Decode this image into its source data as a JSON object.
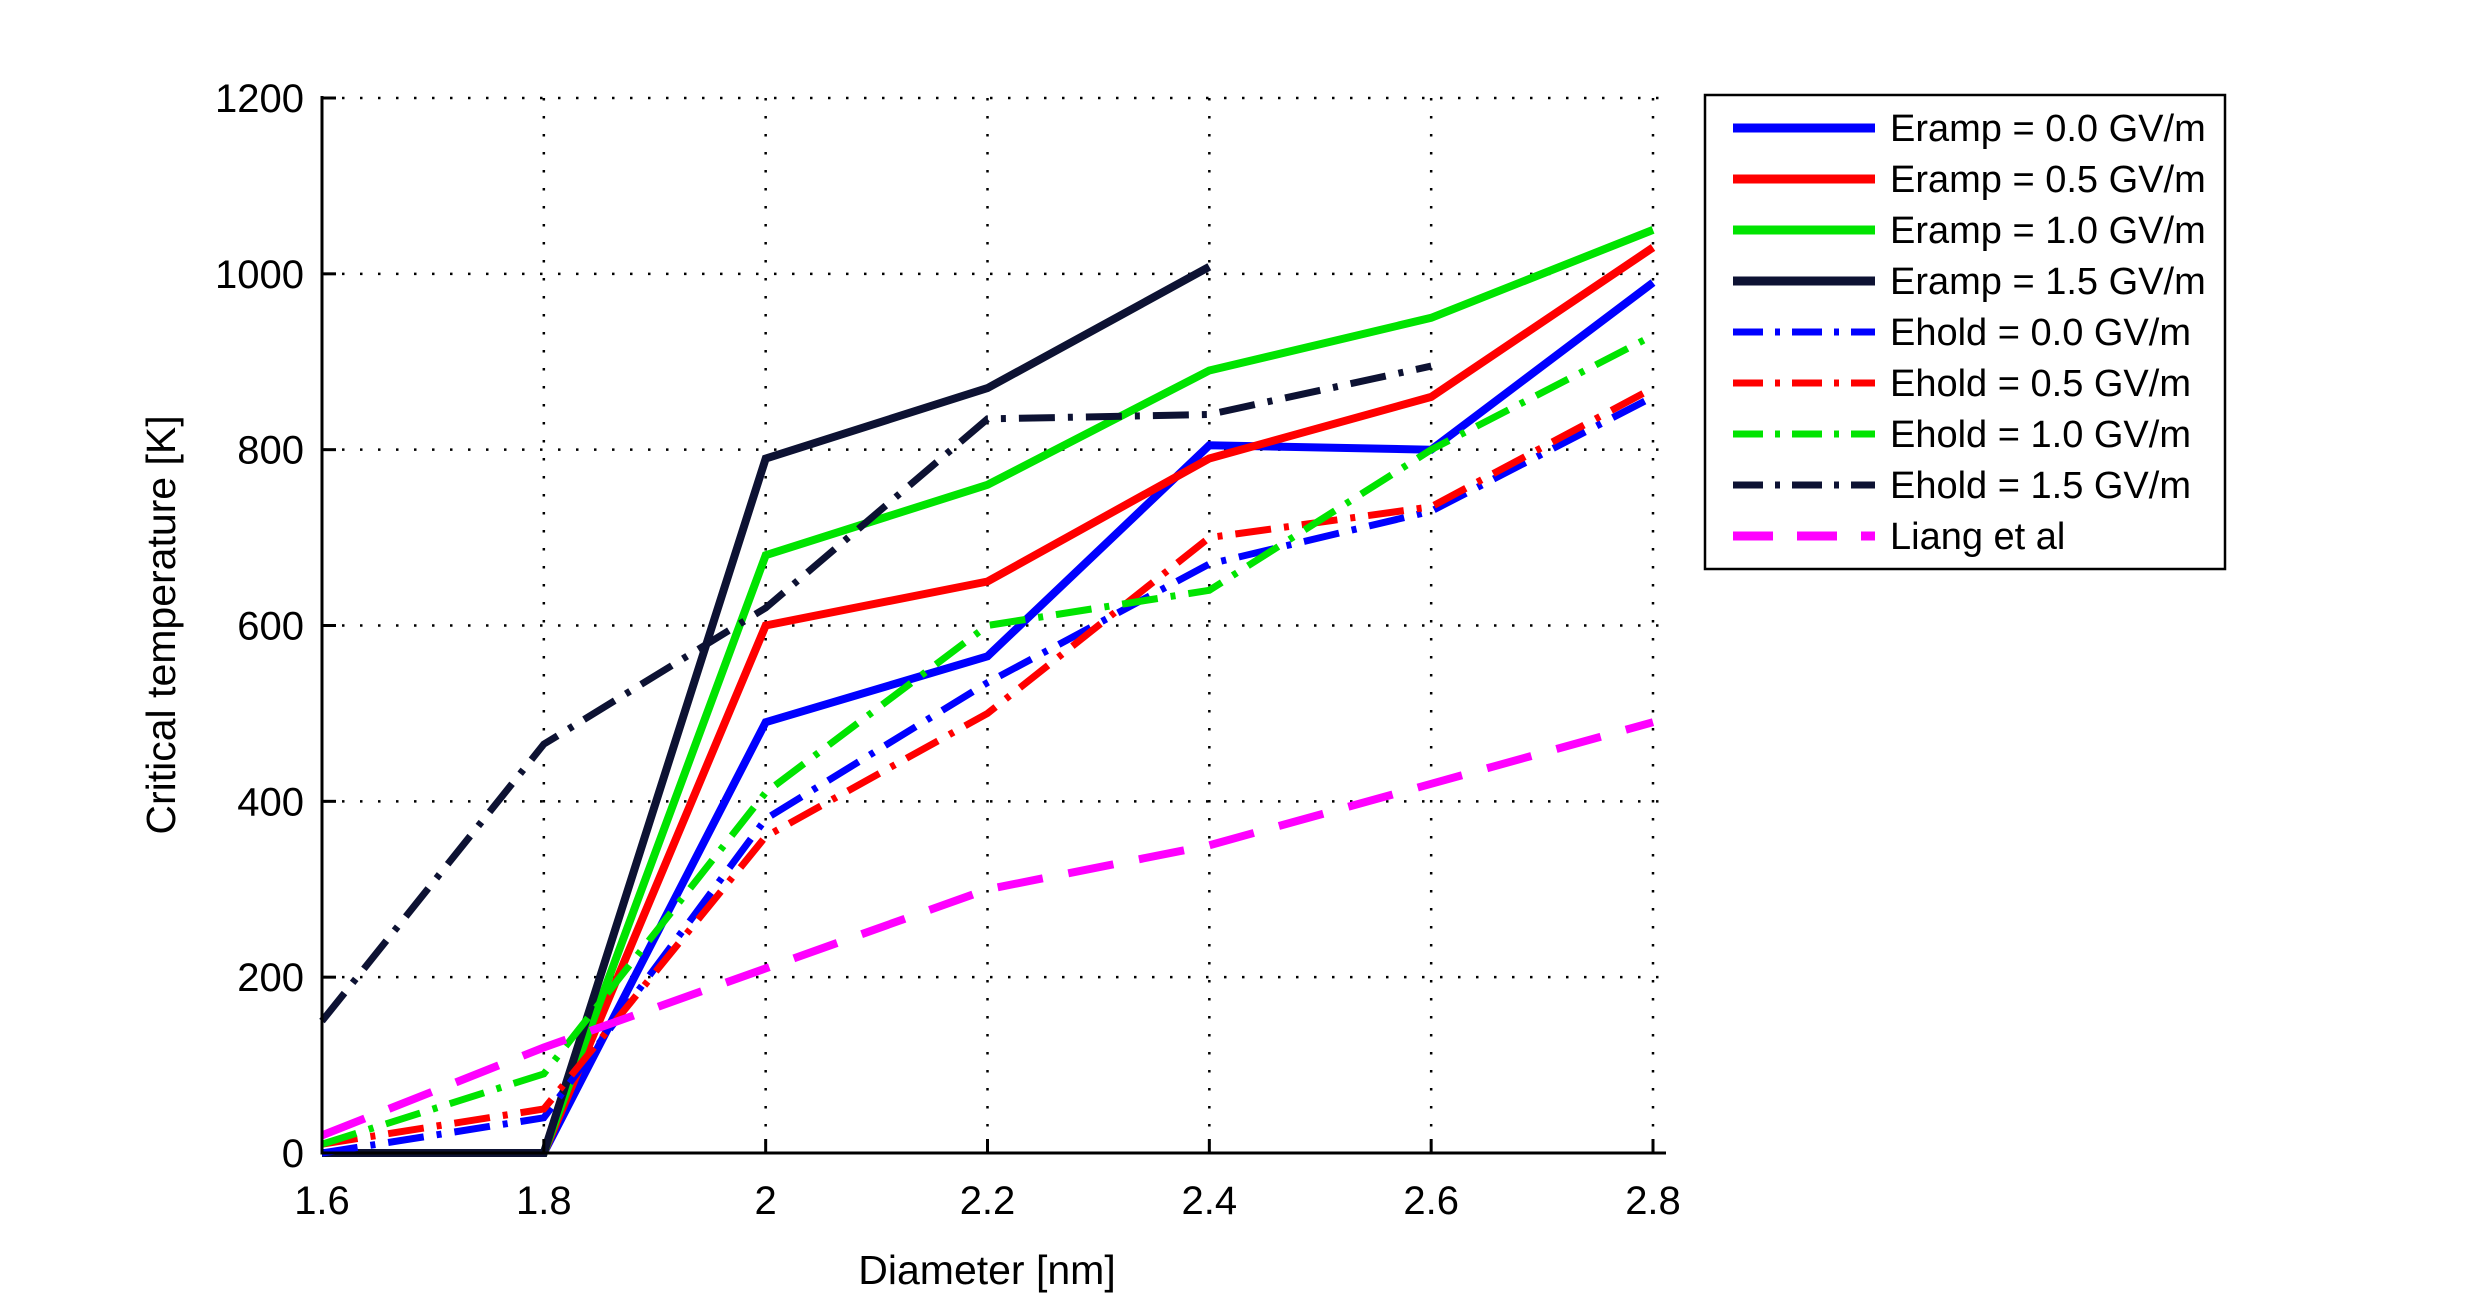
{
  "figure": {
    "background": "#ffffff",
    "chart_data": {
      "type": "line",
      "title": "",
      "xlabel": "Diameter [nm]",
      "ylabel": "Critical temperature [K]",
      "xlim": [
        1.6,
        2.8
      ],
      "ylim": [
        0,
        1200
      ],
      "xtick_values": [
        1.6,
        1.8,
        2.0,
        2.2,
        2.4,
        2.6,
        2.8
      ],
      "xtick_labels": [
        "1.6",
        "1.8",
        "2",
        "2.2",
        "2.4",
        "2.6",
        "2.8"
      ],
      "ytick_values": [
        0,
        200,
        400,
        600,
        800,
        1000,
        1200
      ],
      "ytick_labels": [
        "0",
        "200",
        "400",
        "600",
        "800",
        "1000",
        "1200"
      ],
      "grid": "dotted",
      "grid_color": "#000000",
      "axis_color": "#000000",
      "legend_position": "top-right-outside",
      "series": [
        {
          "name": "Eramp = 0.0 GV/m",
          "color": "#0000ff",
          "style": "solid",
          "x": [
            1.6,
            1.8,
            2.0,
            2.2,
            2.4,
            2.6,
            2.8
          ],
          "y": [
            0,
            0,
            490,
            565,
            805,
            800,
            990
          ]
        },
        {
          "name": "Eramp = 0.5 GV/m",
          "color": "#ff0000",
          "style": "solid",
          "x": [
            1.6,
            1.8,
            2.0,
            2.2,
            2.4,
            2.6,
            2.8
          ],
          "y": [
            0,
            0,
            600,
            650,
            790,
            860,
            1030
          ]
        },
        {
          "name": "Eramp = 1.0 GV/m",
          "color": "#00e400",
          "style": "solid",
          "x": [
            1.6,
            1.8,
            2.0,
            2.2,
            2.4,
            2.6,
            2.8
          ],
          "y": [
            0,
            0,
            680,
            760,
            890,
            950,
            1050
          ]
        },
        {
          "name": "Eramp = 1.5 GV/m",
          "color": "#0d1233",
          "style": "solid",
          "x": [
            1.6,
            1.8,
            2.0,
            2.2,
            2.4
          ],
          "y": [
            0,
            0,
            790,
            870,
            1008
          ]
        },
        {
          "name": "Ehold = 0.0 GV/m",
          "color": "#0000ff",
          "style": "dashdot",
          "x": [
            1.6,
            1.8,
            2.0,
            2.2,
            2.4,
            2.6,
            2.8
          ],
          "y": [
            0,
            40,
            380,
            535,
            670,
            730,
            860
          ]
        },
        {
          "name": "Ehold = 0.5 GV/m",
          "color": "#ff0000",
          "style": "dashdot",
          "x": [
            1.6,
            1.8,
            2.0,
            2.2,
            2.4,
            2.6,
            2.8
          ],
          "y": [
            10,
            50,
            360,
            500,
            700,
            735,
            870
          ]
        },
        {
          "name": "Ehold = 1.0 GV/m",
          "color": "#00e400",
          "style": "dashdot",
          "x": [
            1.6,
            1.8,
            2.0,
            2.2,
            2.4,
            2.6,
            2.8
          ],
          "y": [
            10,
            90,
            410,
            600,
            640,
            800,
            930
          ]
        },
        {
          "name": "Ehold = 1.5 GV/m",
          "color": "#0d1233",
          "style": "dashdot",
          "x": [
            1.6,
            1.8,
            2.0,
            2.2,
            2.4,
            2.6
          ],
          "y": [
            150,
            465,
            620,
            835,
            840,
            895
          ]
        },
        {
          "name": "Liang et al",
          "color": "#ff00ff",
          "style": "dashed",
          "x": [
            1.6,
            1.8,
            2.0,
            2.2,
            2.4,
            2.6,
            2.8
          ],
          "y": [
            20,
            120,
            210,
            300,
            350,
            420,
            490
          ]
        }
      ]
    }
  }
}
